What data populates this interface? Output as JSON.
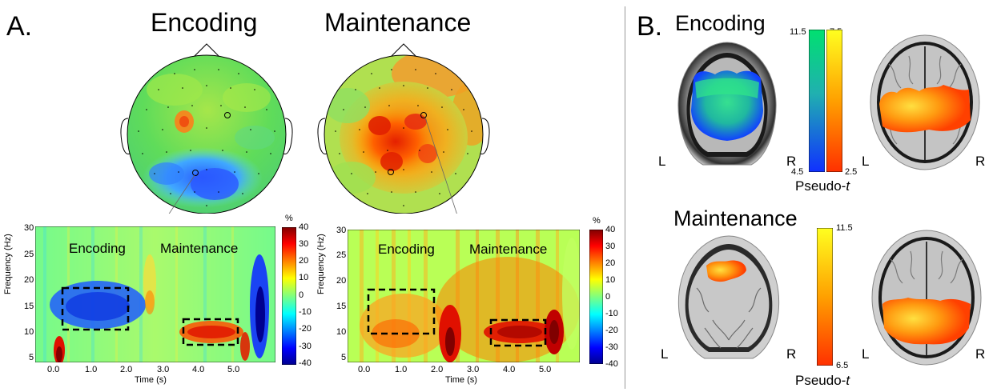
{
  "panel_a": {
    "letter": "A.",
    "titles": [
      "Encoding",
      "Maintenance"
    ],
    "tf_plots": [
      {
        "ylabel": "Frequency (Hz)",
        "xlabel": "Time (s)",
        "yticks": [
          "30",
          "25",
          "20",
          "15",
          "10",
          "5"
        ],
        "xticks": [
          "0.0",
          "1.0",
          "2.0",
          "3.0",
          "4.0",
          "5.0"
        ],
        "labels": [
          "Encoding",
          "Maintenance"
        ],
        "colorbar_unit": "%",
        "colorbar_ticks": [
          "40",
          "30",
          "20",
          "10",
          "0",
          "-10",
          "-20",
          "-30",
          "-40"
        ]
      },
      {
        "ylabel": "Frequency (Hz)",
        "xlabel": "Time (s)",
        "yticks": [
          "30",
          "25",
          "20",
          "15",
          "10",
          "5"
        ],
        "xticks": [
          "0.0",
          "1.0",
          "2.0",
          "3.0",
          "4.0",
          "5.0"
        ],
        "labels": [
          "Encoding",
          "Maintenance"
        ],
        "colorbar_unit": "%",
        "colorbar_ticks": [
          "40",
          "30",
          "20",
          "10",
          "0",
          "-10",
          "-20",
          "-30",
          "-40"
        ]
      }
    ]
  },
  "panel_b": {
    "letter": "B.",
    "encoding_title": "Encoding",
    "maintenance_title": "Maintenance",
    "encoding_colorbars": {
      "green_top": "11.5",
      "blue_bottom": "4.5",
      "yellow_top": "7.5",
      "red_bottom": "2.5"
    },
    "maintenance_colorbar": {
      "top": "11.5",
      "bottom": "6.5"
    },
    "pseudo_label": "Pseudo-",
    "pseudo_italic": "t",
    "left_mark": "L",
    "right_mark": "R"
  },
  "colors": {
    "jet_dark_blue": "#00008f",
    "jet_blue": "#0050ff",
    "jet_cyan": "#00ffff",
    "jet_green": "#7fff7f",
    "jet_yellow": "#ffff00",
    "jet_orange": "#ff8000",
    "jet_red": "#ff0000",
    "jet_dark_red": "#800000"
  }
}
